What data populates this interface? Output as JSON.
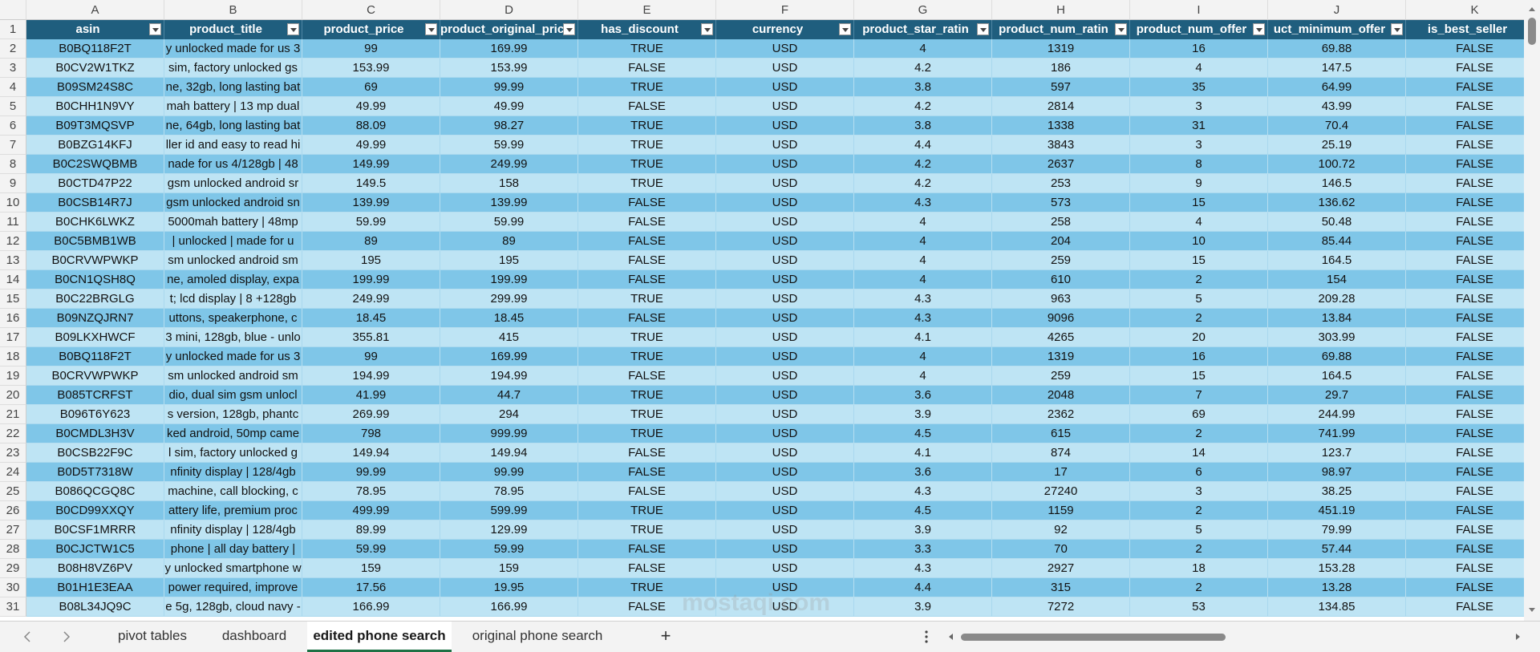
{
  "columns": [
    "A",
    "B",
    "C",
    "D",
    "E",
    "F",
    "G",
    "H",
    "I",
    "J",
    "K"
  ],
  "headers": [
    "asin",
    "product_title",
    "product_price",
    "product_original_pric",
    "has_discount",
    "currency",
    "product_star_ratin",
    "product_num_ratin",
    "product_num_offer",
    "uct_minimum_offer",
    "is_best_seller"
  ],
  "row_numbers": [
    1,
    2,
    3,
    4,
    5,
    6,
    7,
    8,
    9,
    10,
    11,
    12,
    13,
    14,
    15,
    16,
    17,
    18,
    19,
    20,
    21,
    22,
    23,
    24,
    25,
    26,
    27,
    28,
    29,
    30,
    31
  ],
  "rows": [
    [
      "B0BQ118F2T",
      "y unlocked made for us 3",
      99,
      169.99,
      "TRUE",
      "USD",
      4,
      1319,
      16,
      69.88,
      "FALSE"
    ],
    [
      "B0CV2W1TKZ",
      "sim, factory unlocked gs",
      153.99,
      153.99,
      "FALSE",
      "USD",
      4.2,
      186,
      4,
      147.5,
      "FALSE"
    ],
    [
      "B09SM24S8C",
      "ne, 32gb, long lasting bat",
      69,
      99.99,
      "TRUE",
      "USD",
      3.8,
      597,
      35,
      64.99,
      "FALSE"
    ],
    [
      "B0CHH1N9VY",
      "mah battery | 13 mp dual",
      49.99,
      49.99,
      "FALSE",
      "USD",
      4.2,
      2814,
      3,
      43.99,
      "FALSE"
    ],
    [
      "B09T3MQSVP",
      "ne, 64gb, long lasting bat",
      88.09,
      98.27,
      "TRUE",
      "USD",
      3.8,
      1338,
      31,
      70.4,
      "FALSE"
    ],
    [
      "B0BZG14KFJ",
      "ller id and easy to read hi",
      49.99,
      59.99,
      "TRUE",
      "USD",
      4.4,
      3843,
      3,
      25.19,
      "FALSE"
    ],
    [
      "B0C2SWQBMB",
      "nade for us 4/128gb | 48",
      149.99,
      249.99,
      "TRUE",
      "USD",
      4.2,
      2637,
      8,
      100.72,
      "FALSE"
    ],
    [
      "B0CTD47P22",
      "gsm unlocked android sr",
      149.5,
      158,
      "TRUE",
      "USD",
      4.2,
      253,
      9,
      146.5,
      "FALSE"
    ],
    [
      "B0CSB14R7J",
      "gsm unlocked android sn",
      139.99,
      139.99,
      "FALSE",
      "USD",
      4.3,
      573,
      15,
      136.62,
      "FALSE"
    ],
    [
      "B0CHK6LWKZ",
      "5000mah battery | 48mp",
      59.99,
      59.99,
      "FALSE",
      "USD",
      4,
      258,
      4,
      50.48,
      "FALSE"
    ],
    [
      "B0C5BMB1WB",
      "| unlocked | made for u",
      89,
      89,
      "FALSE",
      "USD",
      4,
      204,
      10,
      85.44,
      "FALSE"
    ],
    [
      "B0CRVWPWKP",
      "sm unlocked android sm",
      195,
      195,
      "FALSE",
      "USD",
      4,
      259,
      15,
      164.5,
      "FALSE"
    ],
    [
      "B0CN1QSH8Q",
      "ne, amoled display, expa",
      199.99,
      199.99,
      "FALSE",
      "USD",
      4,
      610,
      2,
      154,
      "FALSE"
    ],
    [
      "B0C22BRGLG",
      "t; lcd display | 8 +128gb",
      249.99,
      299.99,
      "TRUE",
      "USD",
      4.3,
      963,
      5,
      209.28,
      "FALSE"
    ],
    [
      "B09NZQJRN7",
      "uttons, speakerphone, c",
      18.45,
      18.45,
      "FALSE",
      "USD",
      4.3,
      9096,
      2,
      13.84,
      "FALSE"
    ],
    [
      "B09LKXHWCF",
      "3 mini, 128gb, blue - unlo",
      355.81,
      415,
      "TRUE",
      "USD",
      4.1,
      4265,
      20,
      303.99,
      "FALSE"
    ],
    [
      "B0BQ118F2T",
      "y unlocked made for us 3",
      99,
      169.99,
      "TRUE",
      "USD",
      4,
      1319,
      16,
      69.88,
      "FALSE"
    ],
    [
      "B0CRVWPWKP",
      "sm unlocked android sm",
      194.99,
      194.99,
      "FALSE",
      "USD",
      4,
      259,
      15,
      164.5,
      "FALSE"
    ],
    [
      "B085TCRFST",
      "dio, dual sim gsm unlocl",
      41.99,
      44.7,
      "TRUE",
      "USD",
      3.6,
      2048,
      7,
      29.7,
      "FALSE"
    ],
    [
      "B096T6Y623",
      "s version, 128gb, phantc",
      269.99,
      294,
      "TRUE",
      "USD",
      3.9,
      2362,
      69,
      244.99,
      "FALSE"
    ],
    [
      "B0CMDL3H3V",
      "ked android, 50mp came",
      798,
      999.99,
      "TRUE",
      "USD",
      4.5,
      615,
      2,
      741.99,
      "FALSE"
    ],
    [
      "B0CSB22F9C",
      "l sim, factory unlocked g",
      149.94,
      149.94,
      "FALSE",
      "USD",
      4.1,
      874,
      14,
      123.7,
      "FALSE"
    ],
    [
      "B0D5T7318W",
      "nfinity display | 128/4gb",
      99.99,
      99.99,
      "FALSE",
      "USD",
      3.6,
      17,
      6,
      98.97,
      "FALSE"
    ],
    [
      "B086QCGQ8C",
      "machine, call blocking, c",
      78.95,
      78.95,
      "FALSE",
      "USD",
      4.3,
      27240,
      3,
      38.25,
      "FALSE"
    ],
    [
      "B0CD99XXQY",
      "attery life, premium proc",
      499.99,
      599.99,
      "TRUE",
      "USD",
      4.5,
      1159,
      2,
      451.19,
      "FALSE"
    ],
    [
      "B0CSF1MRRR",
      "nfinity display | 128/4gb",
      89.99,
      129.99,
      "TRUE",
      "USD",
      3.9,
      92,
      5,
      79.99,
      "FALSE"
    ],
    [
      "B0CJCTW1C5",
      "phone | all day battery |",
      59.99,
      59.99,
      "FALSE",
      "USD",
      3.3,
      70,
      2,
      57.44,
      "FALSE"
    ],
    [
      "B08H8VZ6PV",
      "y unlocked smartphone w",
      159,
      159,
      "FALSE",
      "USD",
      4.3,
      2927,
      18,
      153.28,
      "FALSE"
    ],
    [
      "B01H1E3EAA",
      "power required, improve",
      17.56,
      19.95,
      "TRUE",
      "USD",
      4.4,
      315,
      2,
      13.28,
      "FALSE"
    ],
    [
      "B08L34JQ9C",
      "e 5g, 128gb, cloud navy -",
      166.99,
      166.99,
      "FALSE",
      "USD",
      3.9,
      7272,
      53,
      134.85,
      "FALSE"
    ]
  ],
  "tabs": [
    "pivot tables",
    "dashboard",
    "edited phone search",
    "original phone search"
  ],
  "active_tab": 2,
  "new_sheet": "+",
  "watermark": "mostaqi.com"
}
